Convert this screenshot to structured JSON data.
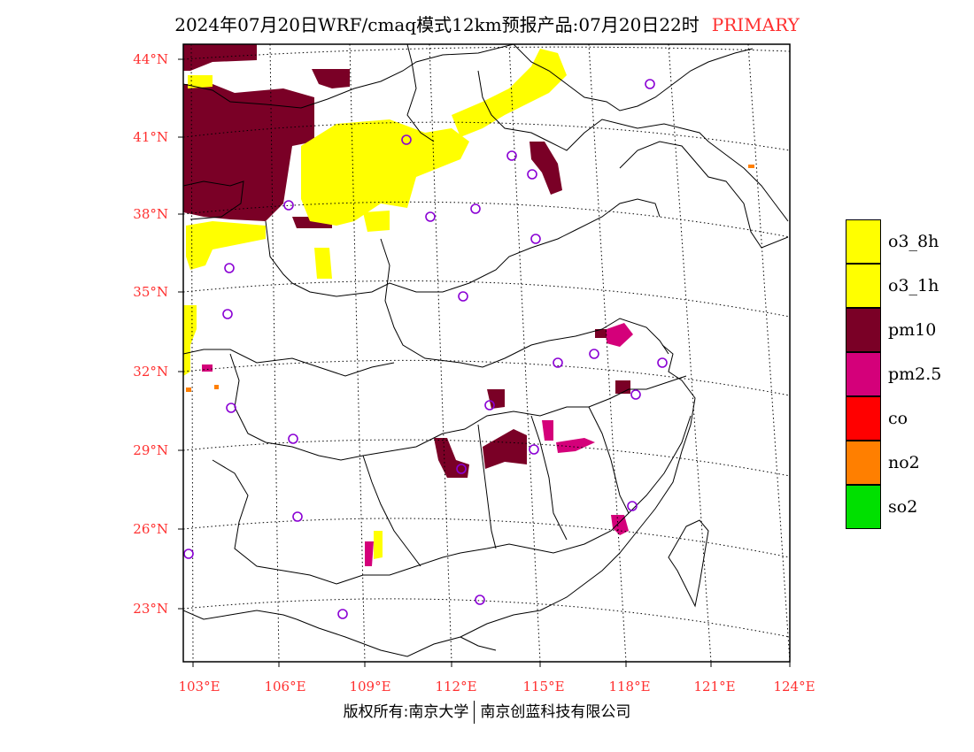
{
  "header": {
    "title": "2024年07月20日WRF/cmaq模式12km预报产品:07月20日22时",
    "tag": "PRIMARY"
  },
  "map": {
    "lat_labels": [
      "44°N",
      "41°N",
      "38°N",
      "35°N",
      "32°N",
      "29°N",
      "26°N",
      "23°N"
    ],
    "lon_labels": [
      "103°E",
      "106°E",
      "109°E",
      "112°E",
      "115°E",
      "118°E",
      "121°E",
      "124°E"
    ],
    "colors": {
      "frame": "#000000",
      "label": "#ff3030",
      "boundary": "#000000",
      "grid": "#000000",
      "station": "#8a00d4"
    }
  },
  "legend": {
    "items": [
      {
        "label": "o3_8h",
        "color": "#ffff00"
      },
      {
        "label": "o3_1h",
        "color": "#ffff00"
      },
      {
        "label": "pm10",
        "color": "#7a0026"
      },
      {
        "label": "pm2.5",
        "color": "#d4007a"
      },
      {
        "label": "co",
        "color": "#ff0000"
      },
      {
        "label": "no2",
        "color": "#ff7f00"
      },
      {
        "label": "so2",
        "color": "#00e000"
      }
    ]
  },
  "footer": {
    "left": "版权所有:南京大学",
    "right": "南京创蓝科技有限公司"
  }
}
